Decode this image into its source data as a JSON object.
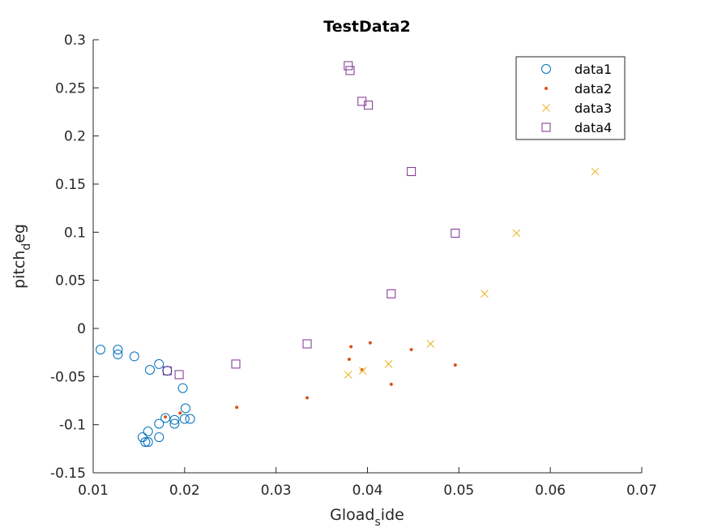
{
  "chart_data": {
    "type": "scatter",
    "title": "TestData2",
    "xlabel": {
      "main": "Gload",
      "sub": "s",
      "rest": "ide"
    },
    "ylabel": {
      "main": "pitch",
      "sub": "d",
      "rest": "eg"
    },
    "xlim": [
      0.01,
      0.07
    ],
    "ylim": [
      -0.15,
      0.3
    ],
    "xticks": [
      0.01,
      0.02,
      0.03,
      0.04,
      0.05,
      0.06,
      0.07
    ],
    "xtick_labels": [
      "0.01",
      "0.02",
      "0.03",
      "0.04",
      "0.05",
      "0.06",
      "0.07"
    ],
    "yticks": [
      -0.15,
      -0.1,
      -0.05,
      0,
      0.05,
      0.1,
      0.15,
      0.2,
      0.25,
      0.3
    ],
    "ytick_labels": [
      "-0.15",
      "-0.1",
      "-0.05",
      "0",
      "0.05",
      "0.1",
      "0.15",
      "0.2",
      "0.25",
      "0.3"
    ],
    "grid": false,
    "legend_position": "top-right",
    "series": [
      {
        "name": "data1",
        "marker": "circle",
        "color": "#0072BD",
        "points": [
          [
            0.0108,
            -0.022
          ],
          [
            0.0127,
            -0.022
          ],
          [
            0.0127,
            -0.027
          ],
          [
            0.0145,
            -0.029
          ],
          [
            0.0162,
            -0.043
          ],
          [
            0.0172,
            -0.037
          ],
          [
            0.0181,
            -0.044
          ],
          [
            0.0198,
            -0.062
          ],
          [
            0.0201,
            -0.083
          ],
          [
            0.0206,
            -0.094
          ],
          [
            0.02,
            -0.094
          ],
          [
            0.0189,
            -0.095
          ],
          [
            0.0189,
            -0.099
          ],
          [
            0.0179,
            -0.093
          ],
          [
            0.0172,
            -0.099
          ],
          [
            0.0172,
            -0.113
          ],
          [
            0.016,
            -0.107
          ],
          [
            0.0154,
            -0.113
          ],
          [
            0.0157,
            -0.118
          ],
          [
            0.016,
            -0.118
          ]
        ]
      },
      {
        "name": "data2",
        "marker": "dot",
        "color": "#D95319",
        "points": [
          [
            0.0179,
            -0.092
          ],
          [
            0.0195,
            -0.088
          ],
          [
            0.0257,
            -0.082
          ],
          [
            0.0334,
            -0.072
          ],
          [
            0.038,
            -0.032
          ],
          [
            0.0382,
            -0.019
          ],
          [
            0.0394,
            -0.043
          ],
          [
            0.0403,
            -0.015
          ],
          [
            0.0426,
            -0.058
          ],
          [
            0.0448,
            -0.022
          ],
          [
            0.0496,
            -0.038
          ]
        ]
      },
      {
        "name": "data3",
        "marker": "x",
        "color": "#EDB120",
        "points": [
          [
            0.0379,
            -0.048
          ],
          [
            0.0395,
            -0.044
          ],
          [
            0.0423,
            -0.037
          ],
          [
            0.0469,
            -0.016
          ],
          [
            0.0528,
            0.036
          ],
          [
            0.0563,
            0.099
          ],
          [
            0.0649,
            0.163
          ]
        ]
      },
      {
        "name": "data4",
        "marker": "square",
        "color": "#7E2F8E",
        "points": [
          [
            0.0181,
            -0.044
          ],
          [
            0.0194,
            -0.048
          ],
          [
            0.0256,
            -0.037
          ],
          [
            0.0334,
            -0.016
          ],
          [
            0.0379,
            0.273
          ],
          [
            0.0381,
            0.268
          ],
          [
            0.0394,
            0.236
          ],
          [
            0.0401,
            0.232
          ],
          [
            0.0426,
            0.036
          ],
          [
            0.0448,
            0.163
          ],
          [
            0.0496,
            0.099
          ]
        ]
      }
    ]
  }
}
